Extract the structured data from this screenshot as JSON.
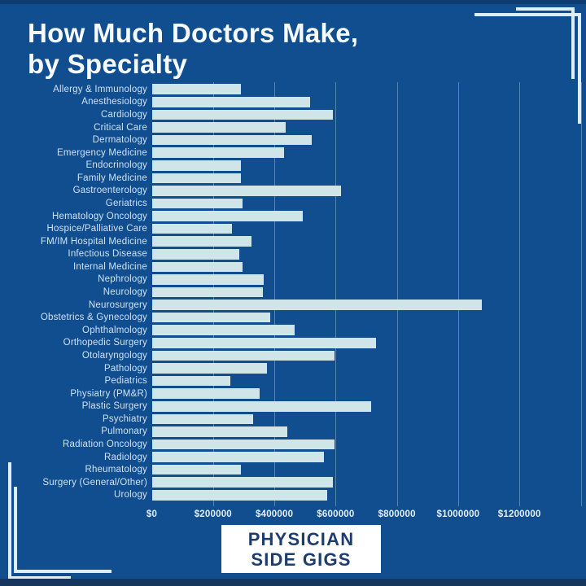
{
  "header": {
    "title_line1": "How Much Doctors Make,",
    "title_line2": "by Specialty"
  },
  "footer": {
    "logo_line1": "PHYSICIAN",
    "logo_line2": "SIDE GIGS"
  },
  "colors": {
    "background": "#114e90",
    "bar_fill": "#cfe5e8",
    "title_text": "#f7fbff",
    "label_text": "#cfe2f4",
    "tick_text": "#e2eef9",
    "gridline": "rgba(214,234,243,0.35)",
    "logo_box": "#ffffff",
    "logo_text": "#1d3c6f",
    "corner_line": "#ddeef8",
    "bottom_strip": "#16365e"
  },
  "chart_data": {
    "type": "bar",
    "orientation": "horizontal",
    "title": "How Much Doctors Make, by Specialty",
    "xlabel": "",
    "ylabel": "",
    "xlim": [
      0,
      1400000
    ],
    "x_tick_interval": 200000,
    "x_tick_labels": [
      "$0",
      "$200000",
      "$400000",
      "$600000",
      "$800000",
      "$1000000",
      "$1200000"
    ],
    "grid": true,
    "legend": false,
    "categories": [
      "Allergy & Immunology",
      "Anesthesiology",
      "Cardiology",
      "Critical Care",
      "Dermatology",
      "Emergency Medicine",
      "Endocrinology",
      "Family Medicine",
      "Gastroenterology",
      "Geriatrics",
      "Hematology Oncology",
      "Hospice/Palliative Care",
      "FM/IM Hospital Medicine",
      "Infectious Disease",
      "Internal Medicine",
      "Nephrology",
      "Neurology",
      "Neurosurgery",
      "Obstetrics & Gynecology",
      "Ophthalmology",
      "Orthopedic Surgery",
      "Otolaryngology",
      "Pathology",
      "Pediatrics",
      "Physiatry (PM&R)",
      "Plastic Surgery",
      "Psychiatry",
      "Pulmonary",
      "Radiation Oncology",
      "Radiology",
      "Rheumatology",
      "Surgery (General/Other)",
      "Urology"
    ],
    "values": [
      290000,
      515000,
      590000,
      435000,
      520000,
      430000,
      290000,
      290000,
      615000,
      295000,
      490000,
      260000,
      325000,
      285000,
      295000,
      365000,
      360000,
      1075000,
      385000,
      465000,
      730000,
      595000,
      375000,
      255000,
      350000,
      715000,
      330000,
      440000,
      595000,
      560000,
      290000,
      590000,
      570000
    ]
  }
}
